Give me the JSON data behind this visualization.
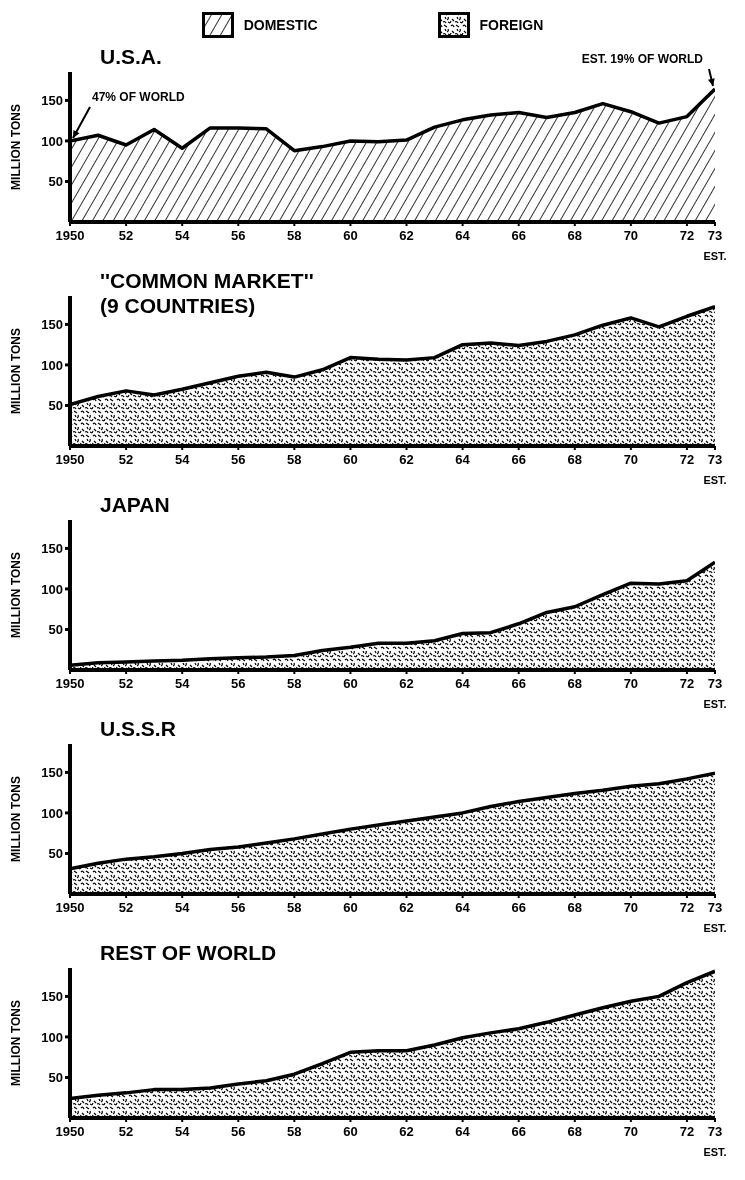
{
  "chart_data": [
    {
      "type": "area",
      "title": "U.S.A.",
      "ylabel": "MILLION TONS",
      "legend": "top",
      "xlim": [
        1950,
        1973
      ],
      "ylim": [
        0,
        185
      ],
      "yticks": [
        50,
        100,
        150
      ],
      "xticks": [
        {
          "value": 1950,
          "label": "1950"
        },
        {
          "value": 1952,
          "label": "52"
        },
        {
          "value": 1954,
          "label": "54"
        },
        {
          "value": 1956,
          "label": "56"
        },
        {
          "value": 1958,
          "label": "58"
        },
        {
          "value": 1960,
          "label": "60"
        },
        {
          "value": 1962,
          "label": "62"
        },
        {
          "value": 1964,
          "label": "64"
        },
        {
          "value": 1966,
          "label": "66"
        },
        {
          "value": 1968,
          "label": "68"
        },
        {
          "value": 1970,
          "label": "70"
        },
        {
          "value": 1972,
          "label": "72"
        },
        {
          "value": 1973,
          "label": "73"
        }
      ],
      "x": [
        1950,
        1951,
        1952,
        1953,
        1954,
        1955,
        1956,
        1957,
        1958,
        1959,
        1960,
        1961,
        1962,
        1963,
        1964,
        1965,
        1966,
        1967,
        1968,
        1969,
        1970,
        1971,
        1972,
        1973
      ],
      "annotations": [
        {
          "text": "47% OF WORLD",
          "x": 1950,
          "y": 100
        },
        {
          "text": "EST. 19% OF WORLD",
          "x": 1973,
          "y": 164
        },
        "EST."
      ],
      "series": [
        {
          "name": "DOMESTIC",
          "color": "#000000",
          "values": [
            100,
            107,
            95,
            114,
            91,
            116,
            116,
            115,
            88,
            93,
            100,
            99,
            101,
            117,
            126,
            132,
            135,
            129,
            135,
            146,
            136,
            122,
            130,
            164
          ]
        }
      ]
    },
    {
      "type": "area",
      "title": "''COMMON MARKET''\n(9 COUNTRIES)",
      "ylabel": "MILLION TONS",
      "xlim": [
        1950,
        1973
      ],
      "ylim": [
        0,
        185
      ],
      "yticks": [
        50,
        100,
        150
      ],
      "xticks": [
        {
          "value": 1950,
          "label": "1950"
        },
        {
          "value": 1952,
          "label": "52"
        },
        {
          "value": 1954,
          "label": "54"
        },
        {
          "value": 1956,
          "label": "56"
        },
        {
          "value": 1958,
          "label": "58"
        },
        {
          "value": 1960,
          "label": "60"
        },
        {
          "value": 1962,
          "label": "62"
        },
        {
          "value": 1964,
          "label": "64"
        },
        {
          "value": 1966,
          "label": "66"
        },
        {
          "value": 1968,
          "label": "68"
        },
        {
          "value": 1970,
          "label": "70"
        },
        {
          "value": 1972,
          "label": "72"
        },
        {
          "value": 1973,
          "label": "73"
        }
      ],
      "x": [
        1950,
        1951,
        1952,
        1953,
        1954,
        1955,
        1956,
        1957,
        1958,
        1959,
        1960,
        1961,
        1962,
        1963,
        1964,
        1965,
        1966,
        1967,
        1968,
        1969,
        1970,
        1971,
        1972,
        1973
      ],
      "annotations": [
        "EST."
      ],
      "series": [
        {
          "name": "FOREIGN",
          "color": "#000000",
          "values": [
            51,
            61,
            68,
            63,
            70,
            78,
            86,
            91,
            85,
            94,
            109,
            107,
            106,
            109,
            125,
            127,
            124,
            129,
            137,
            149,
            158,
            147,
            160,
            172
          ]
        }
      ]
    },
    {
      "type": "area",
      "title": "JAPAN",
      "ylabel": "MILLION TONS",
      "xlim": [
        1950,
        1973
      ],
      "ylim": [
        0,
        185
      ],
      "yticks": [
        50,
        100,
        150
      ],
      "xticks": [
        {
          "value": 1950,
          "label": "1950"
        },
        {
          "value": 1952,
          "label": "52"
        },
        {
          "value": 1954,
          "label": "54"
        },
        {
          "value": 1956,
          "label": "56"
        },
        {
          "value": 1958,
          "label": "58"
        },
        {
          "value": 1960,
          "label": "60"
        },
        {
          "value": 1962,
          "label": "62"
        },
        {
          "value": 1964,
          "label": "64"
        },
        {
          "value": 1966,
          "label": "66"
        },
        {
          "value": 1968,
          "label": "68"
        },
        {
          "value": 1970,
          "label": "70"
        },
        {
          "value": 1972,
          "label": "72"
        },
        {
          "value": 1973,
          "label": "73"
        }
      ],
      "x": [
        1950,
        1951,
        1952,
        1953,
        1954,
        1955,
        1956,
        1957,
        1958,
        1959,
        1960,
        1961,
        1962,
        1963,
        1964,
        1965,
        1966,
        1967,
        1968,
        1969,
        1970,
        1971,
        1972,
        1973
      ],
      "annotations": [
        "EST."
      ],
      "series": [
        {
          "name": "FOREIGN",
          "color": "#000000",
          "values": [
            6,
            9,
            10,
            11,
            12,
            14,
            15,
            16,
            18,
            24,
            28,
            33,
            33,
            36,
            45,
            46,
            57,
            71,
            78,
            93,
            107,
            106,
            110,
            133
          ]
        }
      ]
    },
    {
      "type": "area",
      "title": "U.S.S.R",
      "ylabel": "MILLION TONS",
      "xlim": [
        1950,
        1973
      ],
      "ylim": [
        0,
        185
      ],
      "yticks": [
        50,
        100,
        150
      ],
      "xticks": [
        {
          "value": 1950,
          "label": "1950"
        },
        {
          "value": 1952,
          "label": "52"
        },
        {
          "value": 1954,
          "label": "54"
        },
        {
          "value": 1956,
          "label": "56"
        },
        {
          "value": 1958,
          "label": "58"
        },
        {
          "value": 1960,
          "label": "60"
        },
        {
          "value": 1962,
          "label": "62"
        },
        {
          "value": 1964,
          "label": "64"
        },
        {
          "value": 1966,
          "label": "66"
        },
        {
          "value": 1968,
          "label": "68"
        },
        {
          "value": 1970,
          "label": "70"
        },
        {
          "value": 1972,
          "label": "72"
        },
        {
          "value": 1973,
          "label": "73"
        }
      ],
      "x": [
        1950,
        1951,
        1952,
        1953,
        1954,
        1955,
        1956,
        1957,
        1958,
        1959,
        1960,
        1961,
        1962,
        1963,
        1964,
        1965,
        1966,
        1967,
        1968,
        1969,
        1970,
        1971,
        1972,
        1973
      ],
      "annotations": [
        "EST."
      ],
      "series": [
        {
          "name": "FOREIGN",
          "color": "#000000",
          "values": [
            31,
            38,
            43,
            46,
            50,
            55,
            58,
            63,
            68,
            74,
            80,
            85,
            90,
            95,
            100,
            108,
            114,
            119,
            124,
            128,
            133,
            136,
            142,
            149
          ]
        }
      ]
    },
    {
      "type": "area",
      "title": "REST OF WORLD",
      "ylabel": "MILLION TONS",
      "xlim": [
        1950,
        1973
      ],
      "ylim": [
        0,
        185
      ],
      "yticks": [
        50,
        100,
        150
      ],
      "xticks": [
        {
          "value": 1950,
          "label": "1950"
        },
        {
          "value": 1952,
          "label": "52"
        },
        {
          "value": 1954,
          "label": "54"
        },
        {
          "value": 1956,
          "label": "56"
        },
        {
          "value": 1958,
          "label": "58"
        },
        {
          "value": 1960,
          "label": "60"
        },
        {
          "value": 1962,
          "label": "62"
        },
        {
          "value": 1964,
          "label": "64"
        },
        {
          "value": 1966,
          "label": "66"
        },
        {
          "value": 1968,
          "label": "68"
        },
        {
          "value": 1970,
          "label": "70"
        },
        {
          "value": 1972,
          "label": "72"
        },
        {
          "value": 1973,
          "label": "73"
        }
      ],
      "x": [
        1950,
        1951,
        1952,
        1953,
        1954,
        1955,
        1956,
        1957,
        1958,
        1959,
        1960,
        1961,
        1962,
        1963,
        1964,
        1965,
        1966,
        1967,
        1968,
        1969,
        1970,
        1971,
        1972,
        1973
      ],
      "annotations": [
        "EST."
      ],
      "series": [
        {
          "name": "FOREIGN",
          "color": "#000000",
          "values": [
            24,
            28,
            31,
            35,
            35,
            37,
            42,
            46,
            54,
            67,
            81,
            83,
            83,
            90,
            99,
            105,
            110,
            118,
            127,
            136,
            144,
            150,
            167,
            181
          ]
        }
      ]
    }
  ]
}
